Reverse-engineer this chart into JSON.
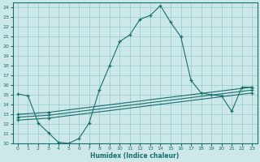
{
  "xlabel": "Humidex (Indice chaleur)",
  "xlim": [
    -0.5,
    23.5
  ],
  "ylim": [
    10,
    24.5
  ],
  "yticks": [
    10,
    11,
    12,
    13,
    14,
    15,
    16,
    17,
    18,
    19,
    20,
    21,
    22,
    23,
    24
  ],
  "xticks": [
    0,
    1,
    2,
    3,
    4,
    5,
    6,
    7,
    8,
    9,
    10,
    11,
    12,
    13,
    14,
    15,
    16,
    17,
    18,
    19,
    20,
    21,
    22,
    23
  ],
  "background_color": "#cce8e8",
  "grid_color": "#89c4c4",
  "line_color": "#1a6e6e",
  "line1_x": [
    0,
    1,
    2,
    3,
    4,
    5,
    6,
    7,
    8,
    9,
    10,
    11,
    12,
    13,
    14,
    15,
    16,
    17,
    18,
    19,
    20,
    21,
    22,
    23
  ],
  "line1_y": [
    15.1,
    14.9,
    12.1,
    11.1,
    10.1,
    10.0,
    10.5,
    12.1,
    15.5,
    18.0,
    20.5,
    21.2,
    22.8,
    23.2,
    24.2,
    22.5,
    21.0,
    16.5,
    15.2,
    15.0,
    14.9,
    13.3,
    15.8,
    15.8
  ],
  "line2_x": [
    0,
    3,
    23
  ],
  "line2_y": [
    13.0,
    13.2,
    15.8
  ],
  "line3_x": [
    0,
    3,
    23
  ],
  "line3_y": [
    12.7,
    12.9,
    15.5
  ],
  "line4_x": [
    0,
    3,
    23
  ],
  "line4_y": [
    12.4,
    12.6,
    15.2
  ]
}
